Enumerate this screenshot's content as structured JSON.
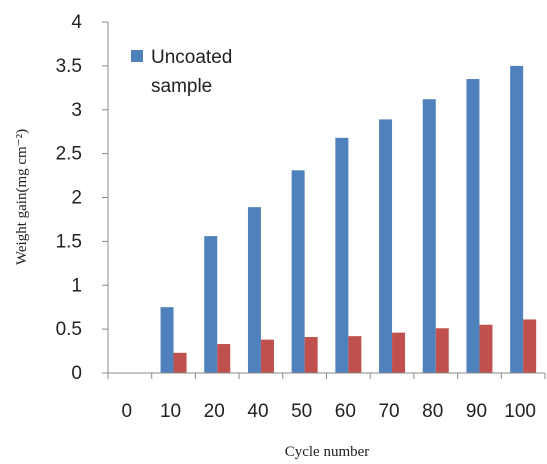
{
  "chart_data": {
    "type": "bar",
    "title": "",
    "xlabel": "Cycle number",
    "ylabel": "Weight gain(mg cm⁻²)",
    "categories": [
      "0",
      "10",
      "20",
      "40",
      "50",
      "60",
      "70",
      "80",
      "90",
      "100"
    ],
    "ylim": [
      0,
      4
    ],
    "yticks": [
      "0",
      "0.5",
      "1",
      "1.5",
      "2",
      "2.5",
      "3",
      "3.5",
      "4"
    ],
    "legend_position": "top-left",
    "grid": false,
    "series": [
      {
        "name": "Uncoated sample",
        "color": "#4F81BD",
        "values": [
          0,
          0.75,
          1.56,
          1.89,
          2.31,
          2.68,
          2.89,
          3.12,
          3.35,
          3.5
        ]
      },
      {
        "color": "#C0504D",
        "values": [
          0,
          0.23,
          0.33,
          0.38,
          0.41,
          0.42,
          0.46,
          0.51,
          0.55,
          0.61
        ]
      }
    ]
  }
}
